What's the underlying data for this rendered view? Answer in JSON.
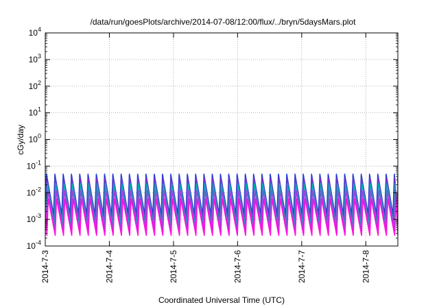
{
  "chart_data": {
    "type": "line",
    "title": "/data/run/goesPlots/archive/2014-07-08/12:00/flux/../bryn/5daysMars.plot",
    "xlabel": "Coordinated Universal Time (UTC)",
    "ylabel": "cGy/day",
    "yscale": "log",
    "ylim": [
      0.0001,
      10000
    ],
    "yticks": [
      {
        "value": 0.0001,
        "base": "10",
        "exp": "-4"
      },
      {
        "value": 0.001,
        "base": "10",
        "exp": "-3"
      },
      {
        "value": 0.01,
        "base": "10",
        "exp": "-2"
      },
      {
        "value": 0.1,
        "base": "10",
        "exp": "-1"
      },
      {
        "value": 1,
        "base": "10",
        "exp": "0"
      },
      {
        "value": 10,
        "base": "10",
        "exp": "1"
      },
      {
        "value": 100,
        "base": "10",
        "exp": "2"
      },
      {
        "value": 1000,
        "base": "10",
        "exp": "3"
      },
      {
        "value": 10000,
        "base": "10",
        "exp": "4"
      }
    ],
    "xlim": [
      "2014-07-03 00:00",
      "2014-07-08 12:00"
    ],
    "xticks": [
      {
        "date": "2014-07-03",
        "label": "2014-7-3"
      },
      {
        "date": "2014-07-04",
        "label": "2014-7-4"
      },
      {
        "date": "2014-07-05",
        "label": "2014-7-5"
      },
      {
        "date": "2014-07-06",
        "label": "2014-7-6"
      },
      {
        "date": "2014-07-07",
        "label": "2014-7-7"
      },
      {
        "date": "2014-07-08",
        "label": "2014-7-8"
      }
    ],
    "grid": true,
    "oscillation_period_hours": 3.1,
    "series": [
      {
        "color": "#1f3fd0",
        "peak": 0.05,
        "trough": 0.0015
      },
      {
        "color": "#7b2fd0",
        "peak": 0.035,
        "trough": 0.0009
      },
      {
        "color": "#00b0b0",
        "peak": 0.022,
        "trough": 0.0006
      },
      {
        "color": "#a040e0",
        "peak": 0.012,
        "trough": 0.0004
      },
      {
        "color": "#ff10e0",
        "peak": 0.006,
        "trough": 0.00025
      }
    ]
  }
}
